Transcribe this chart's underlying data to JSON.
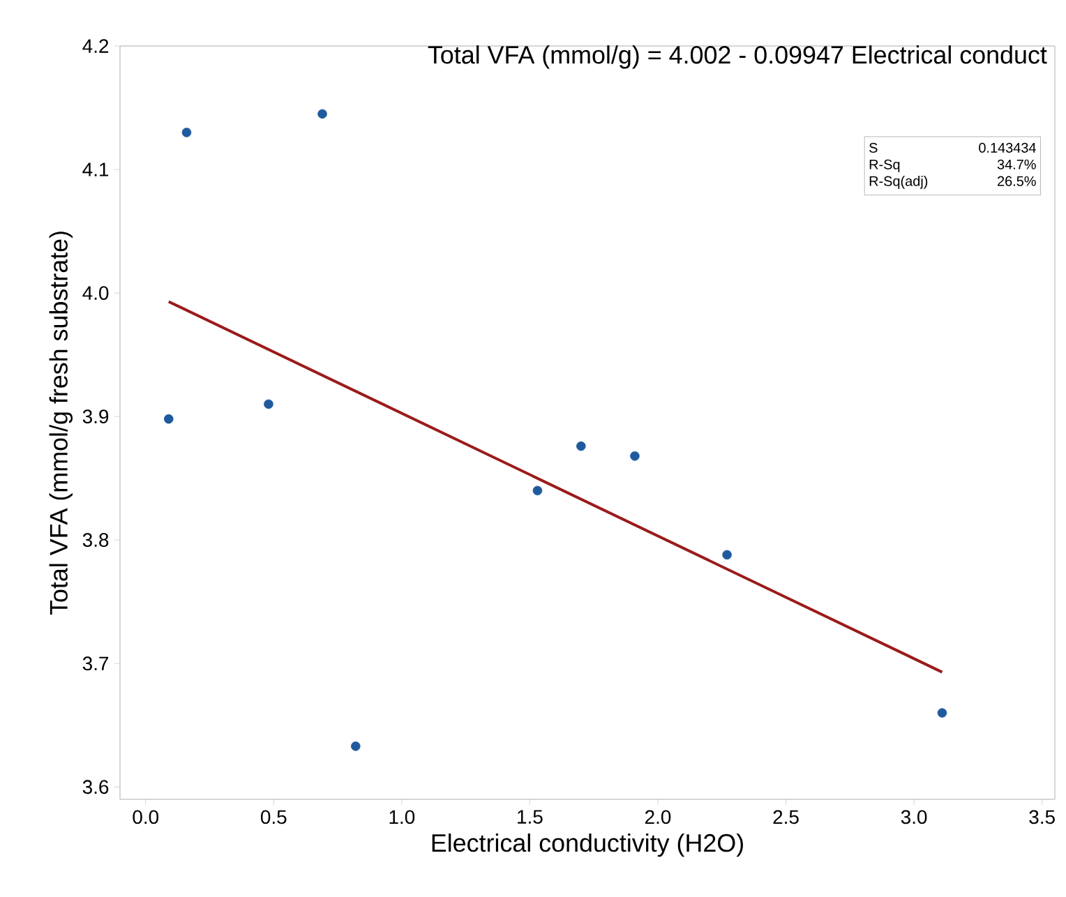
{
  "chart_data": {
    "type": "scatter",
    "title": "Total VFA (mmol/g) = 4.002 - 0.09947 Electrical conduct",
    "xlabel": "Electrical conductivity (H2O)",
    "ylabel": "Total VFA (mmol/g fresh substrate)",
    "xlim": [
      -0.1,
      3.55
    ],
    "ylim": [
      3.59,
      4.2
    ],
    "xticks": [
      {
        "value": 0.0,
        "label": "0.0"
      },
      0.5,
      {
        "value": 1.0,
        "label": "1.0"
      },
      1.5,
      {
        "value": 2.0,
        "label": "2.0"
      },
      2.5,
      {
        "value": 3.0,
        "label": "3.0"
      },
      3.5
    ],
    "yticks": [
      3.6,
      3.7,
      3.8,
      3.9,
      {
        "value": 4.0,
        "label": "4.0"
      },
      4.1,
      4.2
    ],
    "grid": false,
    "series": [
      {
        "marker": "circle",
        "color": "#1f5a9e",
        "x": [
          0.09,
          0.16,
          0.48,
          0.69,
          0.82,
          1.53,
          1.7,
          1.91,
          2.27,
          3.11
        ],
        "values": [
          3.898,
          4.13,
          3.91,
          4.145,
          3.633,
          3.84,
          3.876,
          3.868,
          3.788,
          3.66
        ]
      },
      {
        "type": "line",
        "color": "#9b1b1b",
        "x": [
          0.09,
          3.11
        ],
        "values": [
          3.993,
          3.693
        ]
      }
    ],
    "annotations": [
      "S",
      "0.143434",
      "R-Sq",
      "34.7%",
      "R-Sq(adj)",
      "26.5%"
    ]
  }
}
